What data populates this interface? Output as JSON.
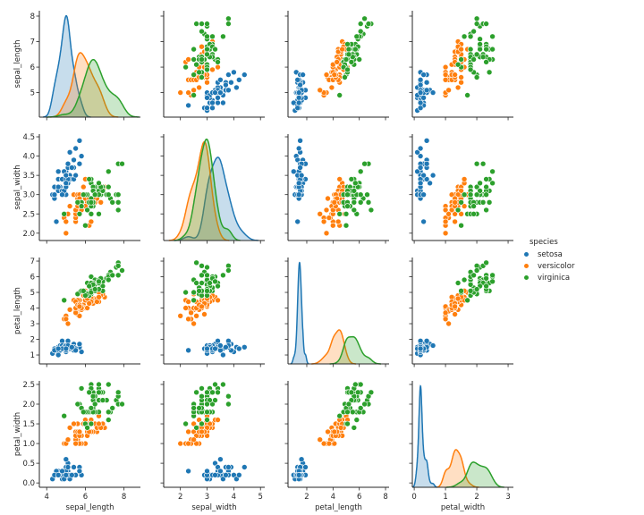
{
  "chart_data": {
    "type": "scatter",
    "subtype": "pairplot",
    "variables": [
      "sepal_length",
      "sepal_width",
      "petal_length",
      "petal_width"
    ],
    "diag_kind": "kde",
    "grid": false,
    "legend": {
      "title": "species",
      "placement": "right",
      "entries": [
        "setosa",
        "versicolor",
        "virginica"
      ]
    },
    "colors": {
      "setosa": "#1f77b4",
      "versicolor": "#ff7f0e",
      "virginica": "#2ca02c"
    },
    "axis_ranges": {
      "sepal_length": [
        3.62,
        8.85
      ],
      "sepal_width": [
        1.375,
        5.16
      ],
      "petal_length": [
        0.57,
        8.27
      ],
      "petal_width": [
        -0.06,
        3.17
      ]
    },
    "row_ranges": {
      "sepal_length": [
        4.04,
        8.21
      ],
      "sepal_width": [
        1.81,
        4.57
      ],
      "petal_length": [
        0.43,
        7.23
      ],
      "petal_width": [
        -0.11,
        2.59
      ]
    },
    "x_ticks": {
      "sepal_length": [
        "4",
        "6",
        "8"
      ],
      "sepal_width": [
        "2",
        "3",
        "4",
        "5"
      ],
      "petal_length": [
        "2",
        "4",
        "6",
        "8"
      ],
      "petal_width": [
        "0",
        "1",
        "2",
        "3"
      ]
    },
    "y_ticks": {
      "sepal_length": [
        "5",
        "6",
        "7",
        "8"
      ],
      "sepal_width": [
        "2.0",
        "2.5",
        "3.0",
        "3.5",
        "4.0",
        "4.5"
      ],
      "petal_length": [
        "1",
        "2",
        "3",
        "4",
        "5",
        "6",
        "7"
      ],
      "petal_width": [
        "0.0",
        "0.5",
        "1.0",
        "1.5",
        "2.0",
        "2.5"
      ]
    },
    "data": {
      "setosa": [
        [
          5.1,
          3.5,
          1.4,
          0.2
        ],
        [
          4.9,
          3.0,
          1.4,
          0.2
        ],
        [
          4.7,
          3.2,
          1.3,
          0.2
        ],
        [
          4.6,
          3.1,
          1.5,
          0.2
        ],
        [
          5.0,
          3.6,
          1.4,
          0.2
        ],
        [
          5.4,
          3.9,
          1.7,
          0.4
        ],
        [
          4.6,
          3.4,
          1.4,
          0.3
        ],
        [
          5.0,
          3.4,
          1.5,
          0.2
        ],
        [
          4.4,
          2.9,
          1.4,
          0.2
        ],
        [
          4.9,
          3.1,
          1.5,
          0.1
        ],
        [
          5.4,
          3.7,
          1.5,
          0.2
        ],
        [
          4.8,
          3.4,
          1.6,
          0.2
        ],
        [
          4.8,
          3.0,
          1.4,
          0.1
        ],
        [
          4.3,
          3.0,
          1.1,
          0.1
        ],
        [
          5.8,
          4.0,
          1.2,
          0.2
        ],
        [
          5.7,
          4.4,
          1.5,
          0.4
        ],
        [
          5.4,
          3.9,
          1.3,
          0.4
        ],
        [
          5.1,
          3.5,
          1.4,
          0.3
        ],
        [
          5.7,
          3.8,
          1.7,
          0.3
        ],
        [
          5.1,
          3.8,
          1.5,
          0.3
        ],
        [
          5.4,
          3.4,
          1.7,
          0.2
        ],
        [
          5.1,
          3.7,
          1.5,
          0.4
        ],
        [
          4.6,
          3.6,
          1.0,
          0.2
        ],
        [
          5.1,
          3.3,
          1.7,
          0.5
        ],
        [
          4.8,
          3.4,
          1.9,
          0.2
        ],
        [
          5.0,
          3.0,
          1.6,
          0.2
        ],
        [
          5.0,
          3.4,
          1.6,
          0.4
        ],
        [
          5.2,
          3.5,
          1.5,
          0.2
        ],
        [
          5.2,
          3.4,
          1.4,
          0.2
        ],
        [
          4.7,
          3.2,
          1.6,
          0.2
        ],
        [
          4.8,
          3.1,
          1.6,
          0.2
        ],
        [
          5.4,
          3.4,
          1.5,
          0.4
        ],
        [
          5.2,
          4.1,
          1.5,
          0.1
        ],
        [
          5.5,
          4.2,
          1.4,
          0.2
        ],
        [
          4.9,
          3.1,
          1.5,
          0.2
        ],
        [
          5.0,
          3.2,
          1.2,
          0.2
        ],
        [
          5.5,
          3.5,
          1.3,
          0.2
        ],
        [
          4.9,
          3.6,
          1.4,
          0.1
        ],
        [
          4.4,
          3.0,
          1.3,
          0.2
        ],
        [
          5.1,
          3.4,
          1.5,
          0.2
        ],
        [
          5.0,
          3.5,
          1.3,
          0.3
        ],
        [
          4.5,
          2.3,
          1.3,
          0.3
        ],
        [
          4.4,
          3.2,
          1.3,
          0.2
        ],
        [
          5.0,
          3.5,
          1.6,
          0.6
        ],
        [
          5.1,
          3.8,
          1.9,
          0.4
        ],
        [
          4.8,
          3.0,
          1.4,
          0.3
        ],
        [
          5.1,
          3.8,
          1.6,
          0.2
        ],
        [
          4.6,
          3.2,
          1.4,
          0.2
        ],
        [
          5.3,
          3.7,
          1.5,
          0.2
        ],
        [
          5.0,
          3.3,
          1.4,
          0.2
        ]
      ],
      "versicolor": [
        [
          7.0,
          3.2,
          4.7,
          1.4
        ],
        [
          6.4,
          3.2,
          4.5,
          1.5
        ],
        [
          6.9,
          3.1,
          4.9,
          1.5
        ],
        [
          5.5,
          2.3,
          4.0,
          1.3
        ],
        [
          6.5,
          2.8,
          4.6,
          1.5
        ],
        [
          5.7,
          2.8,
          4.5,
          1.3
        ],
        [
          6.3,
          3.3,
          4.7,
          1.6
        ],
        [
          4.9,
          2.4,
          3.3,
          1.0
        ],
        [
          6.6,
          2.9,
          4.6,
          1.3
        ],
        [
          5.2,
          2.7,
          3.9,
          1.4
        ],
        [
          5.0,
          2.0,
          3.5,
          1.0
        ],
        [
          5.9,
          3.0,
          4.2,
          1.5
        ],
        [
          6.0,
          2.2,
          4.0,
          1.0
        ],
        [
          6.1,
          2.9,
          4.7,
          1.4
        ],
        [
          5.6,
          2.9,
          3.6,
          1.3
        ],
        [
          6.7,
          3.1,
          4.4,
          1.4
        ],
        [
          5.6,
          3.0,
          4.5,
          1.5
        ],
        [
          5.8,
          2.7,
          4.1,
          1.0
        ],
        [
          6.2,
          2.2,
          4.5,
          1.5
        ],
        [
          5.6,
          2.5,
          3.9,
          1.1
        ],
        [
          5.9,
          3.2,
          4.8,
          1.8
        ],
        [
          6.1,
          2.8,
          4.0,
          1.3
        ],
        [
          6.3,
          2.5,
          4.9,
          1.5
        ],
        [
          6.1,
          2.8,
          4.7,
          1.2
        ],
        [
          6.4,
          2.9,
          4.3,
          1.3
        ],
        [
          6.6,
          3.0,
          4.4,
          1.4
        ],
        [
          6.8,
          2.8,
          4.8,
          1.4
        ],
        [
          6.7,
          3.0,
          5.0,
          1.7
        ],
        [
          6.0,
          2.9,
          4.5,
          1.5
        ],
        [
          5.7,
          2.6,
          3.5,
          1.0
        ],
        [
          5.5,
          2.4,
          3.8,
          1.1
        ],
        [
          5.5,
          2.4,
          3.7,
          1.0
        ],
        [
          5.8,
          2.7,
          3.9,
          1.2
        ],
        [
          6.0,
          2.7,
          5.1,
          1.6
        ],
        [
          5.4,
          3.0,
          4.5,
          1.5
        ],
        [
          6.0,
          3.4,
          4.5,
          1.6
        ],
        [
          6.7,
          3.1,
          4.7,
          1.5
        ],
        [
          6.3,
          2.3,
          4.4,
          1.3
        ],
        [
          5.6,
          3.0,
          4.1,
          1.3
        ],
        [
          5.5,
          2.5,
          4.0,
          1.3
        ],
        [
          5.5,
          2.6,
          4.4,
          1.2
        ],
        [
          6.1,
          3.0,
          4.6,
          1.4
        ],
        [
          5.8,
          2.6,
          4.0,
          1.2
        ],
        [
          5.0,
          2.3,
          3.3,
          1.0
        ],
        [
          5.6,
          2.7,
          4.2,
          1.3
        ],
        [
          5.7,
          3.0,
          4.2,
          1.2
        ],
        [
          5.7,
          2.9,
          4.2,
          1.3
        ],
        [
          6.2,
          2.9,
          4.3,
          1.3
        ],
        [
          5.1,
          2.5,
          3.0,
          1.1
        ],
        [
          5.7,
          2.8,
          4.1,
          1.3
        ]
      ],
      "virginica": [
        [
          6.3,
          3.3,
          6.0,
          2.5
        ],
        [
          5.8,
          2.7,
          5.1,
          1.9
        ],
        [
          7.1,
          3.0,
          5.9,
          2.1
        ],
        [
          6.3,
          2.9,
          5.6,
          1.8
        ],
        [
          6.5,
          3.0,
          5.8,
          2.2
        ],
        [
          7.6,
          3.0,
          6.6,
          2.1
        ],
        [
          4.9,
          2.5,
          4.5,
          1.7
        ],
        [
          7.3,
          2.9,
          6.3,
          1.8
        ],
        [
          6.7,
          2.5,
          5.8,
          1.8
        ],
        [
          7.2,
          3.6,
          6.1,
          2.5
        ],
        [
          6.5,
          3.2,
          5.1,
          2.0
        ],
        [
          6.4,
          2.7,
          5.3,
          1.9
        ],
        [
          6.8,
          3.0,
          5.5,
          2.1
        ],
        [
          5.7,
          2.5,
          5.0,
          2.0
        ],
        [
          5.8,
          2.8,
          5.1,
          2.4
        ],
        [
          6.4,
          3.2,
          5.3,
          2.3
        ],
        [
          6.5,
          3.0,
          5.5,
          1.8
        ],
        [
          7.7,
          3.8,
          6.7,
          2.2
        ],
        [
          7.7,
          2.6,
          6.9,
          2.3
        ],
        [
          6.0,
          2.2,
          5.0,
          1.5
        ],
        [
          6.9,
          3.2,
          5.7,
          2.3
        ],
        [
          5.6,
          2.8,
          4.9,
          2.0
        ],
        [
          7.7,
          2.8,
          6.7,
          2.0
        ],
        [
          6.3,
          2.7,
          4.9,
          1.8
        ],
        [
          6.7,
          3.3,
          5.7,
          2.1
        ],
        [
          7.2,
          3.2,
          6.0,
          1.8
        ],
        [
          6.2,
          2.8,
          4.8,
          1.8
        ],
        [
          6.1,
          3.0,
          4.9,
          1.8
        ],
        [
          6.4,
          2.8,
          5.6,
          2.1
        ],
        [
          7.2,
          3.0,
          5.8,
          1.6
        ],
        [
          7.4,
          2.8,
          6.1,
          1.9
        ],
        [
          7.9,
          3.8,
          6.4,
          2.0
        ],
        [
          6.4,
          2.8,
          5.6,
          2.2
        ],
        [
          6.3,
          2.8,
          5.1,
          1.5
        ],
        [
          6.1,
          2.6,
          5.6,
          1.4
        ],
        [
          7.7,
          3.0,
          6.1,
          2.3
        ],
        [
          6.3,
          3.4,
          5.6,
          2.4
        ],
        [
          6.4,
          3.1,
          5.5,
          1.8
        ],
        [
          6.0,
          3.0,
          4.8,
          1.8
        ],
        [
          6.9,
          3.1,
          5.4,
          2.1
        ],
        [
          6.7,
          3.1,
          5.6,
          2.4
        ],
        [
          6.9,
          3.1,
          5.1,
          2.3
        ],
        [
          5.8,
          2.7,
          5.1,
          1.9
        ],
        [
          6.8,
          3.2,
          5.9,
          2.3
        ],
        [
          6.7,
          3.3,
          5.7,
          2.5
        ],
        [
          6.7,
          3.0,
          5.2,
          2.3
        ],
        [
          6.3,
          2.5,
          5.0,
          1.9
        ],
        [
          6.5,
          3.0,
          5.2,
          2.0
        ],
        [
          6.2,
          3.4,
          5.4,
          2.3
        ],
        [
          5.9,
          3.0,
          5.1,
          1.8
        ]
      ]
    }
  }
}
